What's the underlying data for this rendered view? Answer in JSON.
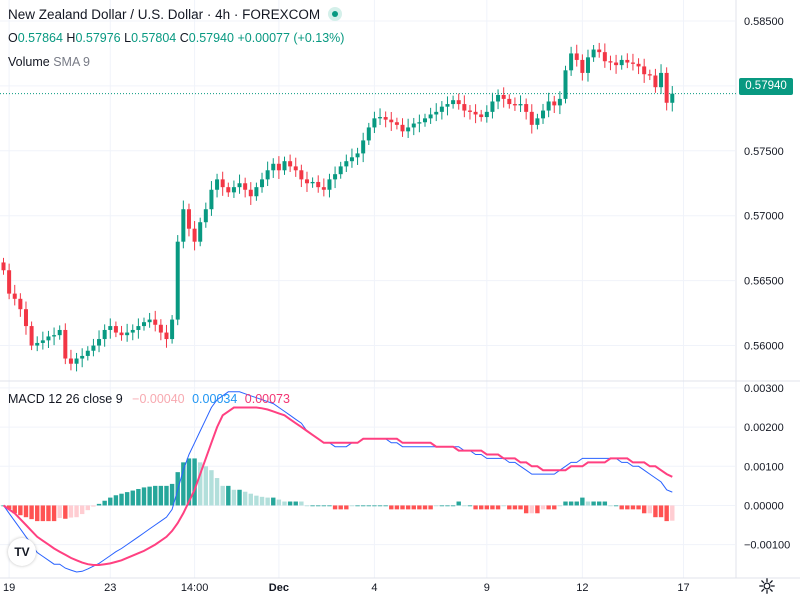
{
  "header": {
    "title": "New Zealand Dollar / U.S. Dollar · 4h · FOREXCOM",
    "ohlc": {
      "o_label": "O",
      "o": "0.57864",
      "h_label": "H",
      "h": "0.57976",
      "l_label": "L",
      "l": "0.57804",
      "c_label": "C",
      "c": "0.57940",
      "change": "+0.00077 (+0.13%)"
    },
    "volume_label": "Volume",
    "volume_params": "SMA 9"
  },
  "macd_header": {
    "label": "MACD",
    "params": "12 26 close 9",
    "hist_value": "−0.00040",
    "macd_value": "0.00034",
    "signal_value": "0.00073"
  },
  "last_price_label": "0.57940",
  "logo_text": "TV",
  "icons": {
    "settings": "gear-icon",
    "logo": "tradingview-logo-icon",
    "live": "live-status-icon"
  },
  "colors": {
    "up": "#089981",
    "down": "#f23645",
    "hist_up_strong": "#26a69a",
    "hist_up_weak": "#b2dfdb",
    "hist_down_strong": "#ff5252",
    "hist_down_weak": "#ffcdd2",
    "macd_line": "#2962ff",
    "signal_line": "#ff4081"
  },
  "chart_data": [
    {
      "type": "candlestick",
      "title": "New Zealand Dollar / U.S. Dollar · 4h · FOREXCOM",
      "xlabel": "",
      "ylabel": "",
      "ylim": [
        0.5575,
        0.586
      ],
      "y_ticks": [
        "0.58500",
        "0.58000",
        "0.57500",
        "0.57000",
        "0.56500",
        "0.56000"
      ],
      "y_tick_values": [
        0.585,
        0.58,
        0.575,
        0.57,
        0.565,
        0.56
      ],
      "x_ticks": [
        "19",
        "23",
        "14:00",
        "Dec",
        "4",
        "9",
        "12",
        "17"
      ],
      "x_tick_index": [
        1,
        19,
        34,
        49,
        66,
        86,
        103,
        121
      ],
      "last_price": 0.5794,
      "closes": [
        0.5658,
        0.564,
        0.5636,
        0.5628,
        0.5615,
        0.56,
        0.5602,
        0.5604,
        0.5607,
        0.5608,
        0.5612,
        0.559,
        0.5586,
        0.559,
        0.5592,
        0.5596,
        0.56,
        0.5605,
        0.5612,
        0.5615,
        0.561,
        0.5608,
        0.561,
        0.5612,
        0.5615,
        0.5618,
        0.562,
        0.5616,
        0.561,
        0.5605,
        0.562,
        0.568,
        0.5705,
        0.569,
        0.568,
        0.5695,
        0.5705,
        0.572,
        0.5728,
        0.5722,
        0.5718,
        0.5722,
        0.5725,
        0.572,
        0.5715,
        0.5722,
        0.5728,
        0.5735,
        0.574,
        0.5735,
        0.5742,
        0.5738,
        0.5735,
        0.5728,
        0.5725,
        0.5726,
        0.5722,
        0.572,
        0.5728,
        0.5732,
        0.5738,
        0.5742,
        0.5745,
        0.5748,
        0.5758,
        0.5768,
        0.5775,
        0.5776,
        0.5774,
        0.5772,
        0.577,
        0.5765,
        0.5768,
        0.5771,
        0.5772,
        0.5775,
        0.5778,
        0.578,
        0.5784,
        0.5786,
        0.5789,
        0.5786,
        0.5781,
        0.578,
        0.5778,
        0.5776,
        0.578,
        0.5788,
        0.5793,
        0.579,
        0.5786,
        0.5785,
        0.5786,
        0.578,
        0.577,
        0.5775,
        0.5781,
        0.5788,
        0.5785,
        0.579,
        0.5812,
        0.5825,
        0.582,
        0.581,
        0.5822,
        0.5828,
        0.5826,
        0.5819,
        0.5818,
        0.5816,
        0.582,
        0.5818,
        0.5817,
        0.5815,
        0.5809,
        0.5808,
        0.5799,
        0.581,
        0.5787,
        0.5794
      ],
      "ohlc_candles_note": "open of each candle equals previous close; wicks extend slightly beyond body"
    },
    {
      "type": "line+bar",
      "title": "MACD 12 26 close 9",
      "ylim": [
        -0.00175,
        0.0031
      ],
      "y_ticks": [
        "0.00300",
        "0.00200",
        "0.00100",
        "0.00000",
        "−0.00100"
      ],
      "y_tick_values": [
        0.003,
        0.002,
        0.001,
        0.0,
        -0.001
      ],
      "series": [
        {
          "name": "MACD",
          "values": [
            0.0,
            -0.0002,
            -0.0004,
            -0.0006,
            -0.0008,
            -0.001,
            -0.0012,
            -0.0013,
            -0.0014,
            -0.0015,
            -0.0015,
            -0.0016,
            -0.00165,
            -0.0017,
            -0.00168,
            -0.00162,
            -0.00155,
            -0.00148,
            -0.00138,
            -0.00128,
            -0.00118,
            -0.0011,
            -0.001,
            -0.0009,
            -0.0008,
            -0.0007,
            -0.0006,
            -0.0005,
            -0.0004,
            -0.0003,
            -0.0001,
            0.0004,
            0.0009,
            0.0013,
            0.0016,
            0.0019,
            0.0022,
            0.0025,
            0.0027,
            0.0028,
            0.0029,
            0.0029,
            0.0029,
            0.00285,
            0.0028,
            0.00275,
            0.0027,
            0.00265,
            0.0026,
            0.0025,
            0.0024,
            0.0023,
            0.0022,
            0.0021,
            0.0019,
            0.0018,
            0.0017,
            0.0016,
            0.0016,
            0.0015,
            0.0015,
            0.0015,
            0.0016,
            0.0016,
            0.0017,
            0.0017,
            0.0017,
            0.0017,
            0.0017,
            0.0016,
            0.0016,
            0.0015,
            0.0015,
            0.0015,
            0.0015,
            0.0015,
            0.0015,
            0.0015,
            0.0015,
            0.0015,
            0.0015,
            0.0015,
            0.0014,
            0.0014,
            0.0013,
            0.0013,
            0.0012,
            0.0012,
            0.0012,
            0.0012,
            0.0011,
            0.0011,
            0.001,
            0.0009,
            0.0008,
            0.0008,
            0.0008,
            0.0008,
            0.0008,
            0.0009,
            0.001,
            0.0011,
            0.0011,
            0.0012,
            0.0012,
            0.0012,
            0.0012,
            0.0012,
            0.0012,
            0.0012,
            0.0011,
            0.0011,
            0.001,
            0.001,
            0.0009,
            0.0008,
            0.0007,
            0.0006,
            0.0004,
            0.00034
          ]
        },
        {
          "name": "Signal",
          "values": [
            0.0,
            -0.0001,
            -0.0002,
            -0.00035,
            -0.0005,
            -0.00065,
            -0.0008,
            -0.0009,
            -0.001,
            -0.0011,
            -0.00118,
            -0.00126,
            -0.00134,
            -0.0014,
            -0.00146,
            -0.0015,
            -0.00152,
            -0.00152,
            -0.0015,
            -0.00148,
            -0.00144,
            -0.0014,
            -0.00134,
            -0.00128,
            -0.00122,
            -0.00116,
            -0.00108,
            -0.001,
            -0.0009,
            -0.0008,
            -0.00065,
            -0.00045,
            -0.0002,
            0.0001,
            0.0004,
            0.0008,
            0.0012,
            0.0016,
            0.002,
            0.0023,
            0.0024,
            0.0025,
            0.0025,
            0.0025,
            0.0025,
            0.0025,
            0.00248,
            0.00245,
            0.0024,
            0.00235,
            0.0023,
            0.0022,
            0.0021,
            0.002,
            0.0019,
            0.0018,
            0.0017,
            0.0016,
            0.0016,
            0.0016,
            0.0016,
            0.0016,
            0.0016,
            0.0016,
            0.0017,
            0.0017,
            0.0017,
            0.0017,
            0.0017,
            0.0017,
            0.0017,
            0.0016,
            0.0016,
            0.0016,
            0.0016,
            0.0016,
            0.0016,
            0.0015,
            0.0015,
            0.0015,
            0.0015,
            0.0014,
            0.0014,
            0.0014,
            0.0014,
            0.0014,
            0.0013,
            0.0013,
            0.0013,
            0.0012,
            0.0012,
            0.0012,
            0.0011,
            0.0011,
            0.001,
            0.001,
            0.0009,
            0.0009,
            0.0009,
            0.0009,
            0.0009,
            0.001,
            0.001,
            0.001,
            0.0011,
            0.0011,
            0.0011,
            0.0011,
            0.0012,
            0.0012,
            0.0012,
            0.0012,
            0.0011,
            0.0011,
            0.0011,
            0.001,
            0.001,
            0.0009,
            0.0008,
            0.00073
          ]
        }
      ],
      "histogram": "derived: MACD minus Signal"
    }
  ]
}
